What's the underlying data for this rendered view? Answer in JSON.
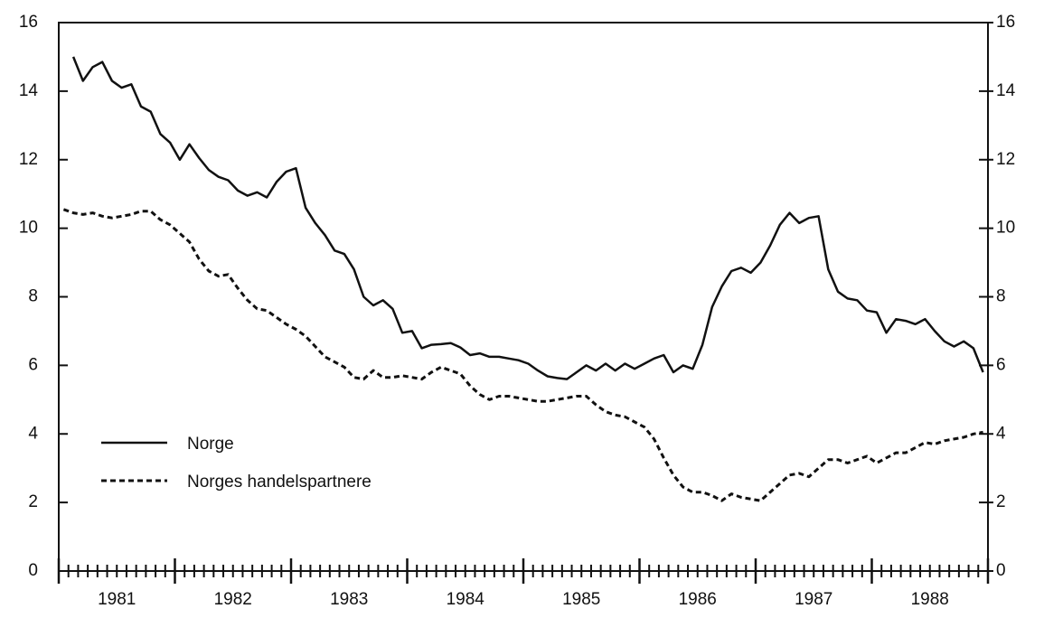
{
  "chart_data": {
    "type": "line",
    "categories": [
      null,
      null,
      null,
      null,
      null,
      null,
      "1981",
      null,
      null,
      null,
      null,
      null,
      null,
      null,
      null,
      null,
      null,
      null,
      "1982",
      null,
      null,
      null,
      null,
      null,
      null,
      null,
      null,
      null,
      null,
      null,
      "1983",
      null,
      null,
      null,
      null,
      null,
      null,
      null,
      null,
      null,
      null,
      null,
      "1984",
      null,
      null,
      null,
      null,
      null,
      null,
      null,
      null,
      null,
      null,
      null,
      "1985",
      null,
      null,
      null,
      null,
      null,
      null,
      null,
      null,
      null,
      null,
      null,
      "1986",
      null,
      null,
      null,
      null,
      null,
      null,
      null,
      null,
      null,
      null,
      null,
      "1987",
      null,
      null,
      null,
      null,
      null,
      null,
      null,
      null,
      null,
      null,
      null,
      "1988",
      null,
      null,
      null,
      null,
      null
    ],
    "series": [
      {
        "name": "Norge",
        "color": "#111111",
        "style": "solid",
        "values": [
          null,
          15.0,
          14.3,
          14.7,
          14.85,
          14.3,
          14.1,
          14.2,
          13.55,
          13.4,
          12.75,
          12.5,
          12.0,
          12.45,
          12.05,
          11.7,
          11.5,
          11.4,
          11.1,
          10.95,
          11.05,
          10.9,
          11.35,
          11.65,
          11.75,
          10.6,
          10.15,
          9.8,
          9.35,
          9.25,
          8.8,
          8.0,
          7.75,
          7.9,
          7.65,
          6.95,
          7.0,
          6.5,
          6.6,
          6.62,
          6.65,
          6.52,
          6.3,
          6.35,
          6.25,
          6.25,
          6.2,
          6.15,
          6.05,
          5.85,
          5.68,
          5.63,
          5.6,
          5.8,
          6.0,
          5.85,
          6.05,
          5.85,
          6.05,
          5.9,
          6.05,
          6.2,
          6.3,
          5.8,
          6.0,
          5.9,
          6.6,
          7.7,
          8.3,
          8.75,
          8.85,
          8.7,
          9.0,
          9.5,
          10.1,
          10.45,
          10.15,
          10.3,
          10.35,
          8.8,
          8.15,
          7.95,
          7.9,
          7.6,
          7.55,
          6.95,
          7.35,
          7.3,
          7.2,
          7.35,
          7.0,
          6.7,
          6.55,
          6.7,
          6.5,
          5.8
        ]
      },
      {
        "name": "Norges handelspartnere",
        "color": "#111111",
        "style": "dashed",
        "values": [
          10.55,
          10.45,
          10.4,
          10.45,
          10.35,
          10.3,
          10.35,
          10.4,
          10.5,
          10.5,
          10.25,
          10.1,
          9.85,
          9.6,
          9.1,
          8.75,
          8.6,
          8.65,
          8.25,
          7.9,
          7.65,
          7.6,
          7.4,
          7.2,
          7.05,
          6.85,
          6.55,
          6.25,
          6.1,
          5.95,
          5.65,
          5.6,
          5.85,
          5.65,
          5.65,
          5.7,
          5.65,
          5.6,
          5.8,
          5.95,
          5.85,
          5.75,
          5.4,
          5.15,
          5.0,
          5.1,
          5.1,
          5.05,
          5.0,
          4.95,
          4.95,
          5.0,
          5.05,
          5.1,
          5.1,
          4.85,
          4.65,
          4.55,
          4.5,
          4.35,
          4.2,
          3.85,
          3.3,
          2.8,
          2.45,
          2.3,
          2.3,
          2.2,
          2.05,
          2.25,
          2.15,
          2.1,
          2.05,
          2.3,
          2.55,
          2.8,
          2.85,
          2.75,
          3.0,
          3.25,
          3.25,
          3.15,
          3.25,
          3.35,
          3.15,
          3.3,
          3.45,
          3.45,
          3.6,
          3.75,
          3.7,
          3.8,
          3.85,
          3.9,
          4.0,
          4.05
        ]
      }
    ],
    "ylim": [
      0,
      16
    ],
    "yticks": [
      0,
      2,
      4,
      6,
      8,
      10,
      12,
      14,
      16
    ],
    "y2lim": [
      0,
      16
    ],
    "y2ticks": [
      0,
      2,
      4,
      6,
      8,
      10,
      12,
      14,
      16
    ],
    "grid": false,
    "legend": "left"
  }
}
